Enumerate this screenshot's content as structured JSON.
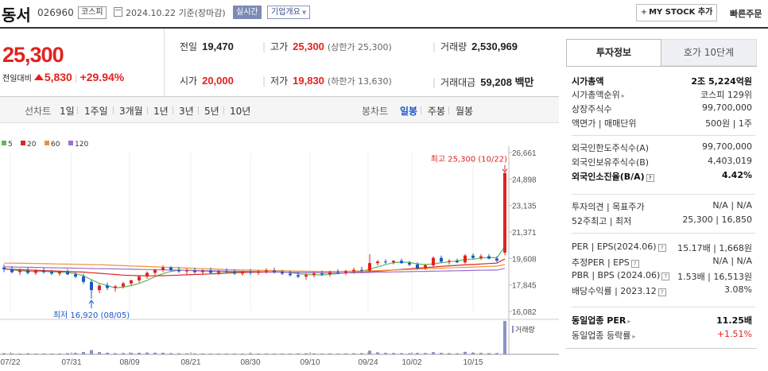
{
  "header": {
    "stock_name": "동서",
    "stock_code": "026960",
    "market_badge": "코스피",
    "date_text": "2024.10.22  기준(장마감)",
    "realtime_label": "실시간",
    "company_overview_label": "기업개요",
    "mystock_label": "MY STOCK 추가",
    "quick_order_label": "빠른주문"
  },
  "price": {
    "current": "25,300",
    "change_label": "전일대비",
    "change_amount": "5,830",
    "change_rate": "+29.94%",
    "up_color": "#e0231f",
    "down_color": "#1a56c8"
  },
  "stats": {
    "prev_close_label": "전일",
    "prev_close": "19,470",
    "open_label": "시가",
    "open": "20,000",
    "high_label": "고가",
    "high": "25,300",
    "upper_limit": "(상한가 25,300)",
    "low_label": "저가",
    "low": "19,830",
    "lower_limit": "(하한가 13,630)",
    "volume_label": "거래량",
    "volume": "2,530,969",
    "amount_label": "거래대금",
    "amount": "59,208 백만"
  },
  "chart_tabs": {
    "line_chart_label": "선차트",
    "periods": [
      "1일",
      "1주일",
      "3개월",
      "1년",
      "3년",
      "5년",
      "10년"
    ],
    "candle_label": "봉차트",
    "candle_periods": [
      "일봉",
      "주봉",
      "월봉"
    ],
    "active_candle": "일봉"
  },
  "chart_data": {
    "type": "candlestick",
    "legend": [
      {
        "name": "5",
        "color": "#5cb85c"
      },
      {
        "name": "20",
        "color": "#e0231f"
      },
      {
        "name": "60",
        "color": "#f0913a"
      },
      {
        "name": "120",
        "color": "#9b6fcf"
      }
    ],
    "y_ticks": [
      "26,661",
      "24,898",
      "23,135",
      "21,371",
      "19,608",
      "17,845",
      "16,082"
    ],
    "ylim": [
      16082,
      26661
    ],
    "x_ticks": [
      "07/22",
      "07/31",
      "08/09",
      "08/21",
      "08/30",
      "09/10",
      "09/24",
      "10/02",
      "10/15"
    ],
    "high_annotation": "최고 25,300 (10/22)",
    "low_annotation": "최저 16,920 (08/05)",
    "volume_label": "거래량",
    "candles": [
      {
        "o": 19000,
        "h": 19200,
        "l": 18700,
        "c": 18900
      },
      {
        "o": 18900,
        "h": 19100,
        "l": 18600,
        "c": 18700
      },
      {
        "o": 18700,
        "h": 18950,
        "l": 18500,
        "c": 18800
      },
      {
        "o": 18800,
        "h": 19000,
        "l": 18550,
        "c": 18650
      },
      {
        "o": 18650,
        "h": 18900,
        "l": 18500,
        "c": 18800
      },
      {
        "o": 18800,
        "h": 19000,
        "l": 18600,
        "c": 18700
      },
      {
        "o": 18700,
        "h": 18850,
        "l": 18500,
        "c": 18600
      },
      {
        "o": 18600,
        "h": 18800,
        "l": 18450,
        "c": 18700
      },
      {
        "o": 18700,
        "h": 18900,
        "l": 18500,
        "c": 18550
      },
      {
        "o": 18550,
        "h": 18700,
        "l": 18300,
        "c": 18400
      },
      {
        "o": 18400,
        "h": 18600,
        "l": 17900,
        "c": 18050
      },
      {
        "o": 18050,
        "h": 18200,
        "l": 16920,
        "c": 17500
      },
      {
        "o": 17500,
        "h": 17900,
        "l": 17300,
        "c": 17800
      },
      {
        "o": 17800,
        "h": 18000,
        "l": 17500,
        "c": 17650
      },
      {
        "o": 17650,
        "h": 17850,
        "l": 17400,
        "c": 17750
      },
      {
        "o": 17750,
        "h": 18050,
        "l": 17600,
        "c": 17950
      },
      {
        "o": 17950,
        "h": 18200,
        "l": 17800,
        "c": 18150
      },
      {
        "o": 18150,
        "h": 18500,
        "l": 18000,
        "c": 18400
      },
      {
        "o": 18400,
        "h": 18750,
        "l": 18250,
        "c": 18650
      },
      {
        "o": 18650,
        "h": 18900,
        "l": 18500,
        "c": 18850
      },
      {
        "o": 18850,
        "h": 19150,
        "l": 18700,
        "c": 19000
      },
      {
        "o": 19000,
        "h": 19100,
        "l": 18750,
        "c": 18850
      },
      {
        "o": 18850,
        "h": 19050,
        "l": 18650,
        "c": 18750
      },
      {
        "o": 18750,
        "h": 18950,
        "l": 18550,
        "c": 18800
      },
      {
        "o": 18800,
        "h": 19000,
        "l": 18600,
        "c": 18700
      },
      {
        "o": 18700,
        "h": 18900,
        "l": 18500,
        "c": 18800
      },
      {
        "o": 18800,
        "h": 19000,
        "l": 18600,
        "c": 18650
      },
      {
        "o": 18650,
        "h": 18850,
        "l": 18500,
        "c": 18750
      },
      {
        "o": 18750,
        "h": 18950,
        "l": 18600,
        "c": 18700
      },
      {
        "o": 18700,
        "h": 18900,
        "l": 18500,
        "c": 18600
      },
      {
        "o": 18600,
        "h": 18800,
        "l": 18450,
        "c": 18700
      },
      {
        "o": 18700,
        "h": 18900,
        "l": 18500,
        "c": 18650
      },
      {
        "o": 18650,
        "h": 18850,
        "l": 18500,
        "c": 18750
      },
      {
        "o": 18750,
        "h": 18950,
        "l": 18600,
        "c": 18800
      },
      {
        "o": 18800,
        "h": 19000,
        "l": 18600,
        "c": 18700
      },
      {
        "o": 18700,
        "h": 18850,
        "l": 18500,
        "c": 18600
      },
      {
        "o": 18600,
        "h": 18800,
        "l": 18400,
        "c": 18500
      },
      {
        "o": 18500,
        "h": 18700,
        "l": 18300,
        "c": 18400
      },
      {
        "o": 18400,
        "h": 18650,
        "l": 18200,
        "c": 18500
      },
      {
        "o": 18500,
        "h": 18750,
        "l": 18350,
        "c": 18600
      },
      {
        "o": 18600,
        "h": 18800,
        "l": 18450,
        "c": 18550
      },
      {
        "o": 18550,
        "h": 18800,
        "l": 18400,
        "c": 18700
      },
      {
        "o": 18700,
        "h": 18900,
        "l": 18550,
        "c": 18650
      },
      {
        "o": 18650,
        "h": 18850,
        "l": 18500,
        "c": 18750
      },
      {
        "o": 18750,
        "h": 19000,
        "l": 18600,
        "c": 18850
      },
      {
        "o": 18850,
        "h": 19050,
        "l": 18650,
        "c": 18800
      },
      {
        "o": 18800,
        "h": 19900,
        "l": 18700,
        "c": 19300
      },
      {
        "o": 19300,
        "h": 19500,
        "l": 19150,
        "c": 19400
      },
      {
        "o": 19400,
        "h": 19550,
        "l": 19250,
        "c": 19350
      },
      {
        "o": 19350,
        "h": 19500,
        "l": 19200,
        "c": 19450
      },
      {
        "o": 19450,
        "h": 19600,
        "l": 19250,
        "c": 19300
      },
      {
        "o": 19300,
        "h": 19450,
        "l": 19100,
        "c": 19200
      },
      {
        "o": 19200,
        "h": 19350,
        "l": 18850,
        "c": 18950
      },
      {
        "o": 18950,
        "h": 19250,
        "l": 18850,
        "c": 19150
      },
      {
        "o": 19150,
        "h": 19750,
        "l": 19050,
        "c": 19650
      },
      {
        "o": 19650,
        "h": 19800,
        "l": 19300,
        "c": 19400
      },
      {
        "o": 19400,
        "h": 19550,
        "l": 19200,
        "c": 19450
      },
      {
        "o": 19450,
        "h": 19600,
        "l": 19300,
        "c": 19350
      },
      {
        "o": 19350,
        "h": 19900,
        "l": 19250,
        "c": 19800
      },
      {
        "o": 19800,
        "h": 19950,
        "l": 19550,
        "c": 19650
      },
      {
        "o": 19650,
        "h": 19900,
        "l": 19500,
        "c": 19750
      },
      {
        "o": 19750,
        "h": 19900,
        "l": 19550,
        "c": 19600
      },
      {
        "o": 19600,
        "h": 19750,
        "l": 19350,
        "c": 19470
      },
      {
        "o": 20000,
        "h": 25300,
        "l": 19830,
        "c": 25300
      }
    ],
    "ma_lines": [
      {
        "name": "5",
        "values": [
          18950,
          18850,
          18800,
          18750,
          18750,
          18750,
          18720,
          18700,
          18680,
          18600,
          18450,
          18200,
          17950,
          17800,
          17650,
          17700,
          17800,
          17950,
          18150,
          18400,
          18600,
          18750,
          18820,
          18820,
          18780,
          18770,
          18740,
          18730,
          18720,
          18700,
          18700,
          18690,
          18690,
          18700,
          18720,
          18720,
          18670,
          18600,
          18540,
          18520,
          18510,
          18550,
          18600,
          18650,
          18700,
          18750,
          18900,
          19050,
          19200,
          19330,
          19360,
          19340,
          19250,
          19200,
          19250,
          19330,
          19380,
          19450,
          19540,
          19560,
          19630,
          19680,
          19650,
          20400
        ]
      },
      {
        "name": "20",
        "values": [
          18900,
          18880,
          18860,
          18840,
          18820,
          18800,
          18780,
          18760,
          18740,
          18720,
          18700,
          18660,
          18620,
          18580,
          18540,
          18500,
          18480,
          18460,
          18450,
          18450,
          18460,
          18480,
          18500,
          18520,
          18540,
          18560,
          18580,
          18600,
          18630,
          18660,
          18680,
          18690,
          18700,
          18700,
          18700,
          18700,
          18690,
          18680,
          18670,
          18660,
          18650,
          18650,
          18650,
          18660,
          18670,
          18690,
          18720,
          18760,
          18800,
          18840,
          18880,
          18920,
          18960,
          19000,
          19040,
          19080,
          19120,
          19150,
          19180,
          19210,
          19240,
          19270,
          19300,
          19580
        ]
      },
      {
        "name": "60",
        "values": [
          19300,
          19300,
          19290,
          19280,
          19270,
          19260,
          19250,
          19240,
          19230,
          19220,
          19210,
          19200,
          19190,
          19170,
          19150,
          19130,
          19110,
          19090,
          19070,
          19050,
          19030,
          19010,
          18990,
          18970,
          18950,
          18930,
          18910,
          18890,
          18870,
          18850,
          18840,
          18830,
          18820,
          18810,
          18800,
          18790,
          18780,
          18770,
          18760,
          18750,
          18750,
          18750,
          18750,
          18760,
          18770,
          18780,
          18790,
          18800,
          18820,
          18840,
          18860,
          18880,
          18900,
          18920,
          18940,
          18960,
          18980,
          19000,
          19020,
          19040,
          19060,
          19080,
          19100,
          19200
        ]
      },
      {
        "name": "120",
        "values": [
          19050,
          19040,
          19030,
          19020,
          19010,
          19000,
          18990,
          18980,
          18970,
          18960,
          18950,
          18940,
          18930,
          18920,
          18910,
          18900,
          18890,
          18880,
          18870,
          18860,
          18850,
          18840,
          18830,
          18820,
          18810,
          18800,
          18790,
          18780,
          18770,
          18760,
          18750,
          18740,
          18730,
          18720,
          18710,
          18700,
          18690,
          18680,
          18670,
          18660,
          18650,
          18650,
          18650,
          18650,
          18660,
          18670,
          18680,
          18690,
          18700,
          18710,
          18720,
          18730,
          18740,
          18750,
          18760,
          18770,
          18780,
          18790,
          18800,
          18810,
          18820,
          18830,
          18840,
          18950
        ]
      }
    ],
    "volume": [
      90,
      70,
      60,
      80,
      60,
      70,
      50,
      60,
      90,
      110,
      180,
      320,
      170,
      120,
      90,
      100,
      110,
      120,
      140,
      130,
      120,
      90,
      80,
      70,
      60,
      70,
      60,
      60,
      50,
      60,
      50,
      60,
      60,
      70,
      60,
      50,
      60,
      70,
      80,
      70,
      60,
      70,
      60,
      70,
      80,
      90,
      280,
      150,
      110,
      100,
      90,
      80,
      110,
      100,
      170,
      110,
      90,
      80,
      190,
      120,
      110,
      90,
      100,
      2530
    ]
  },
  "invest_info": {
    "tab_invest": "투자정보",
    "tab_orderbook": "호가 10단계",
    "rows": [
      {
        "k": "시가총액",
        "v": "2조 5,224억원",
        "strong": true
      },
      {
        "k": "시가총액순위",
        "v": "코스피 129위",
        "caret": true
      },
      {
        "k": "상장주식수",
        "v": "99,700,000"
      },
      {
        "k": "액면가 | 매매단위",
        "v": "500원 | 1주"
      },
      {
        "k": "외국인한도주식수(A)",
        "v": "99,700,000"
      },
      {
        "k": "외국인보유주식수(B)",
        "v": "4,403,019"
      },
      {
        "k": "외국인소진율(B/A)",
        "v": "4.42%",
        "strong": true,
        "q": true
      },
      {
        "k": "투자의견 | 목표주가",
        "v": "N/A | N/A"
      },
      {
        "k": "52주최고 | 최저",
        "v": "25,300 | 16,850"
      },
      {
        "k": "PER | EPS(2024.06)",
        "v": "15.17배 | 1,668원",
        "q": true
      },
      {
        "k": "추정PER | EPS",
        "v": "N/A | N/A",
        "q": true
      },
      {
        "k": "PBR | BPS (2024.06)",
        "v": "1.53배 | 16,513원",
        "q": true
      },
      {
        "k": "배당수익률 | 2023.12",
        "v": "3.08%",
        "q": true
      },
      {
        "k": "동일업종 PER",
        "v": "11.25배",
        "strong": true,
        "caret": true
      },
      {
        "k": "동일업종 등락률",
        "v": "+1.51%",
        "red": true,
        "caret": true
      }
    ]
  }
}
